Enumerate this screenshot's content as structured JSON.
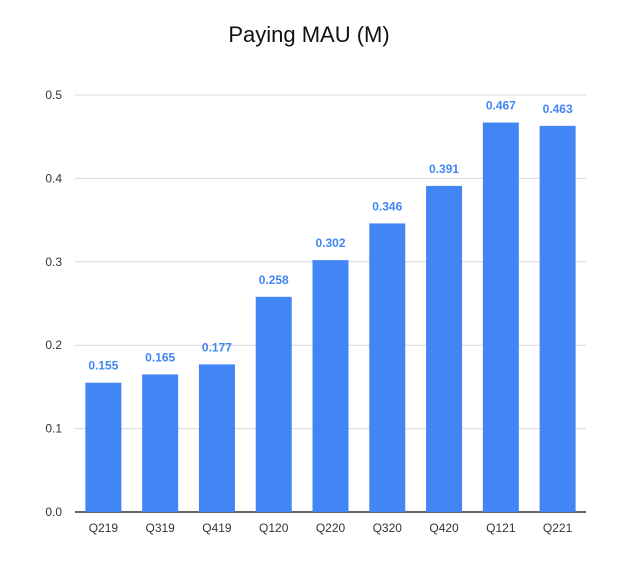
{
  "chart_data": {
    "type": "bar",
    "title": "Paying MAU (M)",
    "xlabel": "",
    "ylabel": "",
    "categories": [
      "Q219",
      "Q319",
      "Q419",
      "Q120",
      "Q220",
      "Q320",
      "Q420",
      "Q121",
      "Q221"
    ],
    "values": [
      0.155,
      0.165,
      0.177,
      0.258,
      0.302,
      0.346,
      0.391,
      0.467,
      0.463
    ],
    "data_labels": [
      "0.155",
      "0.165",
      "0.177",
      "0.258",
      "0.302",
      "0.346",
      "0.391",
      "0.467",
      "0.463"
    ],
    "ylim": [
      0,
      0.5
    ],
    "yticks": [
      "0.0",
      "0.1",
      "0.2",
      "0.3",
      "0.4",
      "0.5"
    ],
    "grid": true,
    "legend": "none",
    "bar_color": "#4285f4",
    "label_color": "#4285f4",
    "gridline_color": "#d9d9d9",
    "axis_color": "#333333"
  }
}
